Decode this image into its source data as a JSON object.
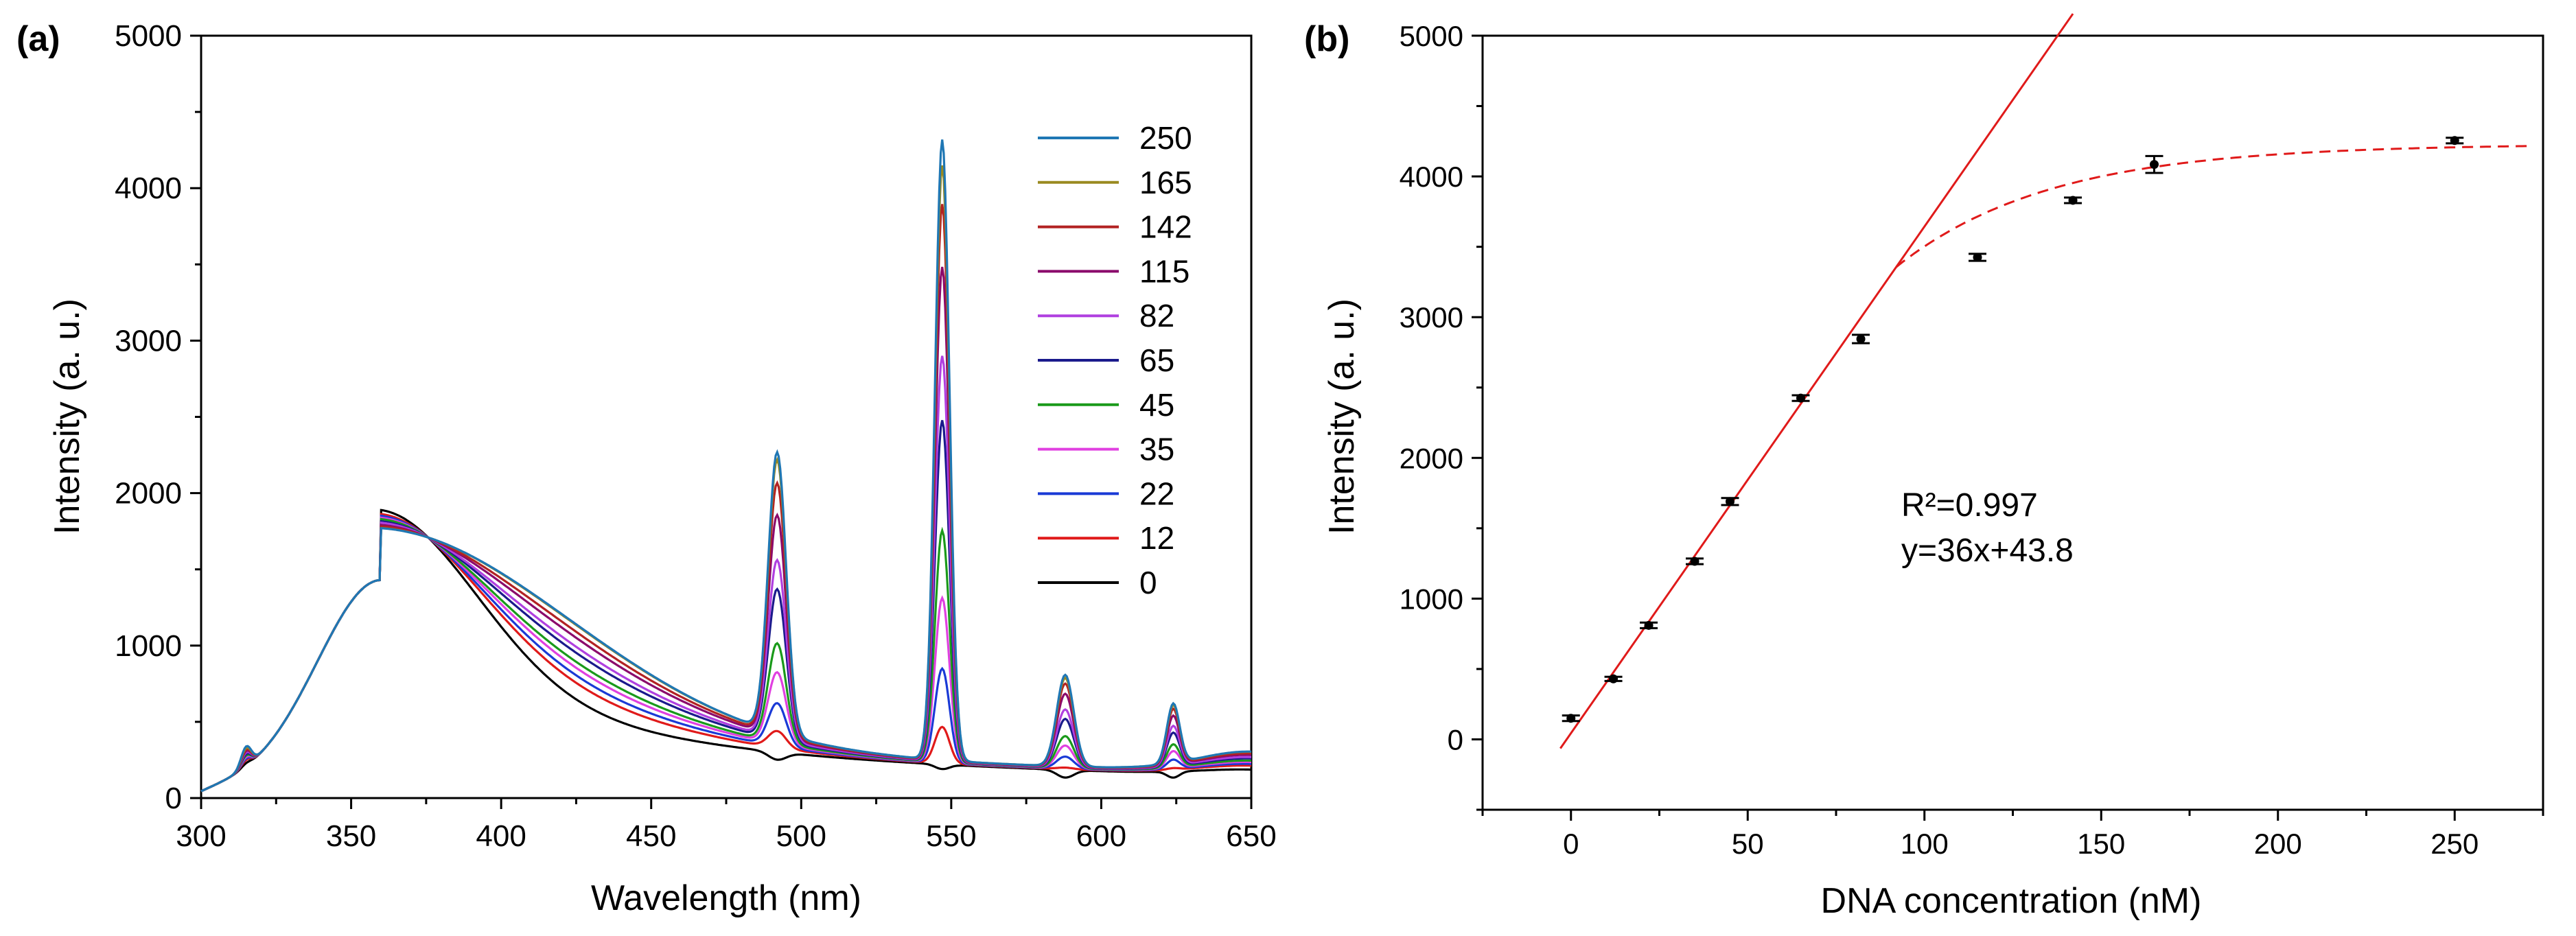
{
  "panels": {
    "a": {
      "label": "(a)"
    },
    "b": {
      "label": "(b)"
    }
  },
  "chart_data": [
    {
      "type": "line",
      "panel": "(a)",
      "title": "",
      "xlabel": "Wavelength (nm)",
      "ylabel": "Intensity (a. u.)",
      "xlim": [
        300,
        650
      ],
      "ylim": [
        0,
        5000
      ],
      "xticks": [
        300,
        350,
        400,
        450,
        500,
        550,
        600,
        650
      ],
      "yticks": [
        0,
        1000,
        2000,
        3000,
        4000,
        5000
      ],
      "legend_position": "top-right",
      "peak_positions_nm": [
        315,
        360,
        492,
        547,
        588,
        624
      ],
      "series": [
        {
          "name": "250",
          "color": "#1f77b4",
          "level": 1.0,
          "peaks": [
            380,
            2090,
            4250,
            720,
            500
          ]
        },
        {
          "name": "165",
          "color": "#9a8a20",
          "level": 0.99,
          "peaks": [
            370,
            2040,
            4080,
            700,
            490
          ]
        },
        {
          "name": "142",
          "color": "#b22222",
          "level": 0.9,
          "peaks": [
            360,
            1900,
            3830,
            665,
            470
          ]
        },
        {
          "name": "115",
          "color": "#8b0a6b",
          "level": 0.82,
          "peaks": [
            350,
            1700,
            3420,
            600,
            430
          ]
        },
        {
          "name": "82",
          "color": "#b040e0",
          "level": 0.7,
          "peaks": [
            340,
            1420,
            2840,
            500,
            370
          ]
        },
        {
          "name": "65",
          "color": "#1a1a8c",
          "level": 0.62,
          "peaks": [
            330,
            1240,
            2420,
            440,
            330
          ]
        },
        {
          "name": "45",
          "color": "#1a9a1a",
          "level": 0.5,
          "peaks": [
            320,
            900,
            1700,
            330,
            260
          ]
        },
        {
          "name": "35",
          "color": "#e040e0",
          "level": 0.42,
          "peaks": [
            310,
            720,
            1260,
            270,
            220
          ]
        },
        {
          "name": "22",
          "color": "#1a3ad6",
          "level": 0.32,
          "peaks": [
            300,
            530,
            800,
            200,
            170
          ]
        },
        {
          "name": "12",
          "color": "#e01a1a",
          "level": 0.22,
          "peaks": [
            290,
            360,
            420,
            130,
            120
          ]
        },
        {
          "name": "0",
          "color": "#000000",
          "level": 0.0,
          "peaks": [
            270,
            200,
            150,
            70,
            70
          ]
        }
      ]
    },
    {
      "type": "scatter",
      "panel": "(b)",
      "title": "",
      "xlabel": "DNA concentration (nM)",
      "ylabel": "Intensity (a. u.)",
      "xlim": [
        -25,
        275
      ],
      "ylim": [
        -500,
        5000
      ],
      "xticks": [
        0,
        50,
        100,
        150,
        200,
        250
      ],
      "yticks": [
        0,
        1000,
        2000,
        3000,
        4000,
        5000
      ],
      "points": [
        {
          "x": 0,
          "y": 150,
          "err": 20
        },
        {
          "x": 12,
          "y": 430,
          "err": 15
        },
        {
          "x": 22,
          "y": 810,
          "err": 20
        },
        {
          "x": 35,
          "y": 1265,
          "err": 20
        },
        {
          "x": 45,
          "y": 1690,
          "err": 25
        },
        {
          "x": 65,
          "y": 2425,
          "err": 20
        },
        {
          "x": 82,
          "y": 2845,
          "err": 30
        },
        {
          "x": 115,
          "y": 3425,
          "err": 25
        },
        {
          "x": 142,
          "y": 3830,
          "err": 20
        },
        {
          "x": 165,
          "y": 4085,
          "err": 60
        },
        {
          "x": 250,
          "y": 4255,
          "err": 20
        }
      ],
      "fit_line": {
        "slope": 36,
        "intercept": 43.8,
        "x_range": [
          -3,
          142
        ],
        "color": "#e01a1a"
      },
      "saturation_curve": {
        "color": "#e01a1a",
        "x_range": [
          92,
          272
        ],
        "plateau": 4230,
        "rate": 0.023
      },
      "annotations": [
        "R²=0.997",
        "y=36x+43.8"
      ]
    }
  ]
}
